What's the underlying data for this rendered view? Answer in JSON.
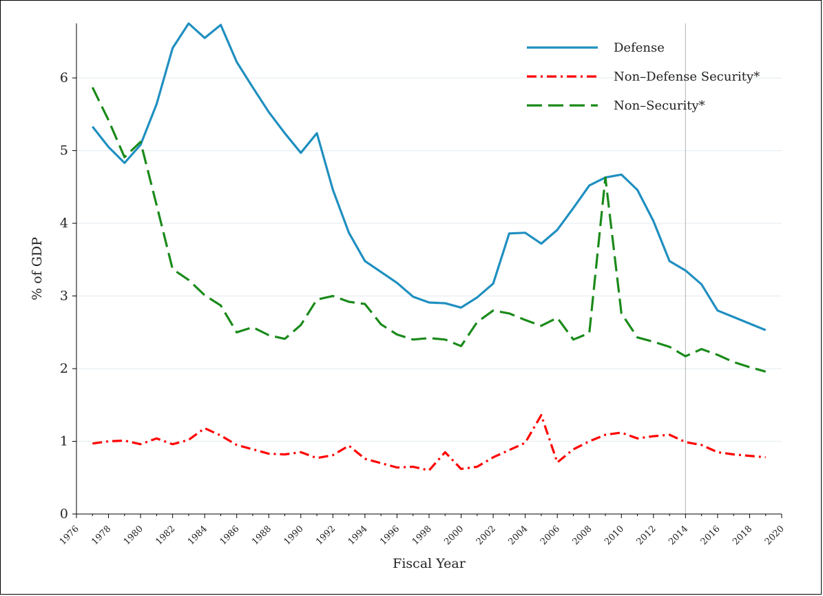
{
  "chart_data": {
    "type": "line",
    "title": "",
    "xlabel": "Fiscal Year",
    "ylabel": "% of GDP",
    "xlim": [
      1976,
      2020
    ],
    "ylim": [
      0,
      6.75
    ],
    "x_ticks": [
      "1976",
      "1978",
      "1980",
      "1982",
      "1984",
      "1986",
      "1988",
      "1990",
      "1992",
      "1994",
      "1996",
      "1998",
      "2000",
      "2002",
      "2004",
      "2006",
      "2008",
      "2010",
      "2012",
      "2014",
      "2016",
      "2018",
      "2020"
    ],
    "y_ticks": [
      "0",
      "1",
      "2",
      "3",
      "4",
      "5",
      "6"
    ],
    "grid": "horizontal",
    "reference_line_x": 2014,
    "legend_position": "top-right",
    "x": [
      1977,
      1978,
      1979,
      1980,
      1981,
      1982,
      1983,
      1984,
      1985,
      1986,
      1987,
      1988,
      1989,
      1990,
      1991,
      1992,
      1993,
      1994,
      1995,
      1996,
      1997,
      1998,
      1999,
      2000,
      2001,
      2002,
      2003,
      2004,
      2005,
      2006,
      2007,
      2008,
      2009,
      2010,
      2011,
      2012,
      2013,
      2014,
      2015,
      2016,
      2017,
      2018,
      2019
    ],
    "series": [
      {
        "name": "Defense",
        "color": "#1f8fc0",
        "style": "solid",
        "values": [
          5.33,
          5.05,
          4.83,
          5.08,
          5.64,
          6.41,
          6.75,
          6.55,
          6.73,
          6.22,
          5.87,
          5.53,
          5.24,
          4.97,
          5.24,
          4.46,
          3.87,
          3.48,
          3.33,
          3.18,
          2.99,
          2.91,
          2.9,
          2.84,
          2.98,
          3.17,
          3.86,
          3.87,
          3.72,
          3.91,
          4.21,
          4.52,
          4.63,
          4.67,
          4.46,
          4.03,
          3.48,
          3.35,
          3.16,
          2.8,
          2.71,
          2.62,
          2.53
        ]
      },
      {
        "name": "Non–Defense Security*",
        "color": "#ff0000",
        "style": "dash-dot",
        "values": [
          0.97,
          1.0,
          1.01,
          0.96,
          1.04,
          0.96,
          1.02,
          1.18,
          1.08,
          0.95,
          0.89,
          0.83,
          0.82,
          0.85,
          0.77,
          0.81,
          0.94,
          0.76,
          0.7,
          0.64,
          0.65,
          0.6,
          0.85,
          0.62,
          0.65,
          0.78,
          0.88,
          0.98,
          1.36,
          0.71,
          0.89,
          1.0,
          1.09,
          1.12,
          1.04,
          1.07,
          1.09,
          0.99,
          0.95,
          0.85,
          0.82,
          0.8,
          0.78
        ]
      },
      {
        "name": "Non–Security*",
        "color": "#1a8a1a",
        "style": "dashed",
        "values": [
          5.87,
          5.42,
          4.91,
          5.12,
          4.25,
          3.37,
          3.22,
          3.01,
          2.87,
          2.5,
          2.57,
          2.46,
          2.41,
          2.6,
          2.95,
          3.0,
          2.92,
          2.89,
          2.61,
          2.47,
          2.4,
          2.42,
          2.4,
          2.31,
          2.64,
          2.8,
          2.76,
          2.67,
          2.59,
          2.7,
          2.4,
          2.49,
          4.63,
          2.76,
          2.43,
          2.37,
          2.3,
          2.17,
          2.27,
          2.19,
          2.09,
          2.02,
          1.96
        ]
      }
    ]
  }
}
